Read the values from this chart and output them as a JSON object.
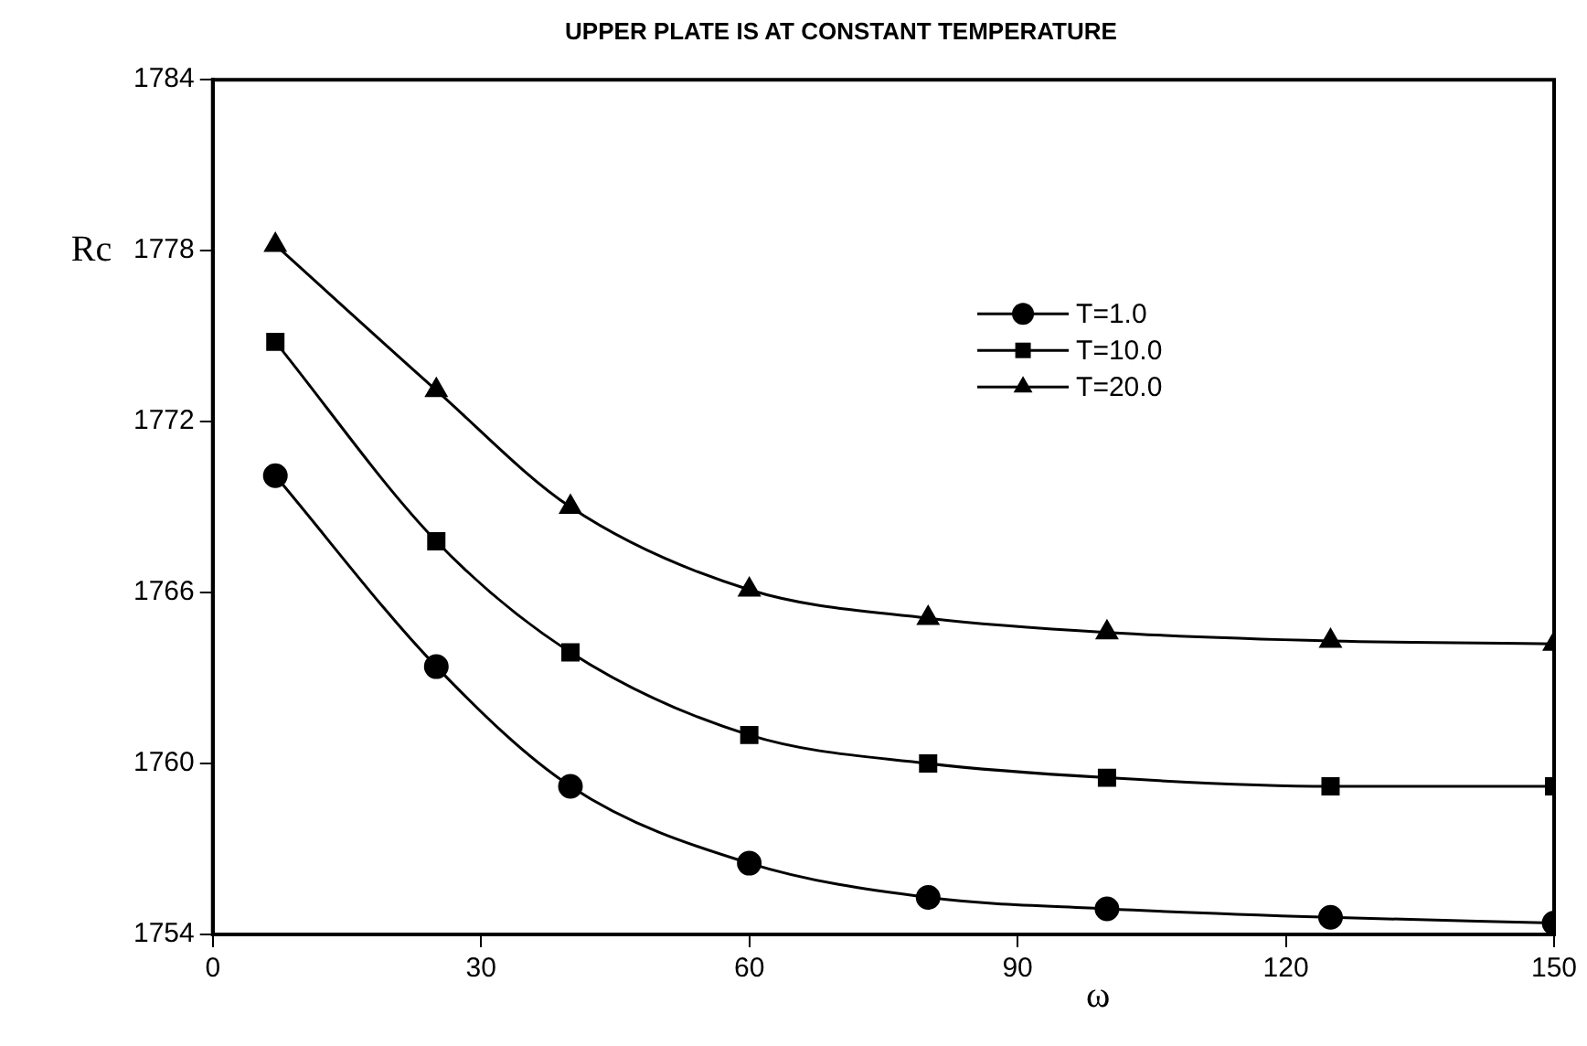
{
  "chart_data": {
    "type": "line",
    "title": "UPPER PLATE IS AT CONSTANT TEMPERATURE",
    "xlabel": "ω",
    "ylabel": "Rc",
    "x": [
      7,
      25,
      40,
      60,
      80,
      100,
      125,
      150
    ],
    "series": [
      {
        "name": "T=1.0",
        "color": "#000000",
        "marker": "circle",
        "values": [
          1770.1,
          1763.4,
          1759.2,
          1756.5,
          1755.3,
          1754.9,
          1754.6,
          1754.4
        ]
      },
      {
        "name": "T=10.0",
        "color": "#000000",
        "marker": "square",
        "values": [
          1774.8,
          1767.8,
          1763.9,
          1761.0,
          1760.0,
          1759.5,
          1759.2,
          1759.2
        ]
      },
      {
        "name": "T=20.0",
        "color": "#000000",
        "marker": "triangle",
        "values": [
          1778.2,
          1773.1,
          1769.0,
          1766.1,
          1765.1,
          1764.6,
          1764.3,
          1764.2
        ]
      }
    ],
    "xlim": [
      0,
      150
    ],
    "xticks": [
      0,
      30,
      60,
      90,
      120,
      150
    ],
    "ylim": [
      1754,
      1784
    ],
    "yticks": [
      1754,
      1760,
      1766,
      1772,
      1778,
      1784
    ],
    "grid": false,
    "legend": "top right",
    "line_style": "solid"
  }
}
